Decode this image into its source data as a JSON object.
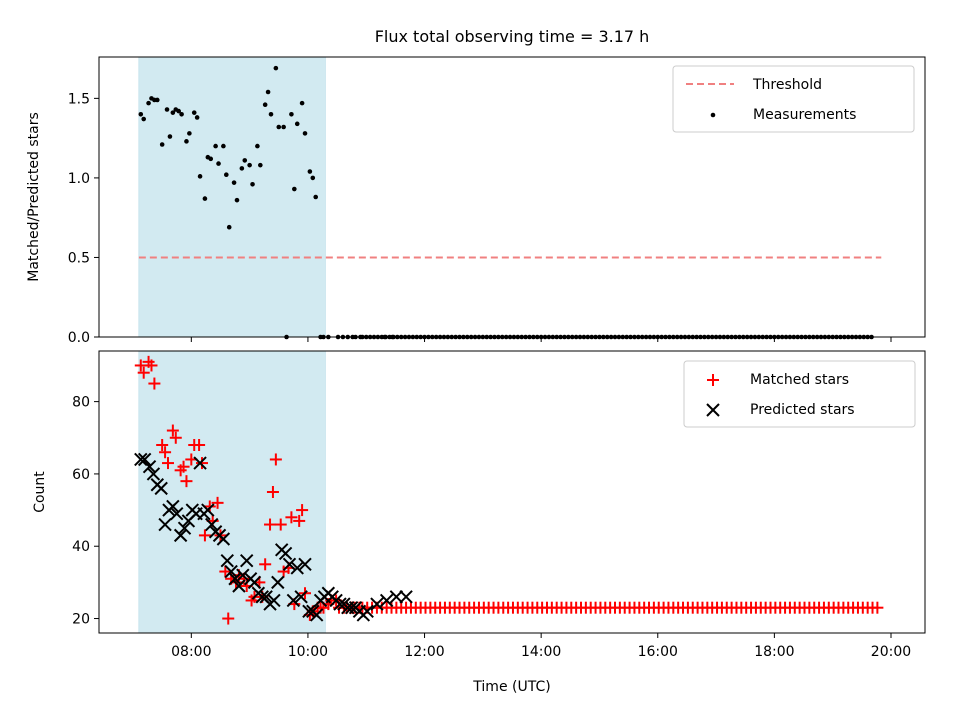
{
  "chart_data": [
    {
      "type": "scatter",
      "title": "Flux total observing time = 3.17 h",
      "ylabel": "Matched/Predicted stars",
      "xlim": [
        "06:25",
        "20:35"
      ],
      "ylim": [
        0,
        1.76
      ],
      "yticks": [
        0.0,
        0.5,
        1.0,
        1.5
      ],
      "ytick_labels": [
        "0.0",
        "0.5",
        "1.0",
        "1.5"
      ],
      "shaded_span": [
        "07:06",
        "10:18"
      ],
      "shaded_color": "#add8e6",
      "threshold": {
        "name": "Threshold",
        "value": 0.5,
        "from": "07:06",
        "to": "19:50",
        "color": "#f08080",
        "style": "dashed"
      },
      "series": [
        {
          "name": "Measurements",
          "color": "#000000",
          "x": [
            "07:08",
            "07:11",
            "07:16",
            "07:19",
            "07:22",
            "07:25",
            "07:30",
            "07:35",
            "07:38",
            "07:41",
            "07:44",
            "07:47",
            "07:50",
            "07:55",
            "07:58",
            "08:03",
            "08:06",
            "08:09",
            "08:14",
            "08:17",
            "08:20",
            "08:25",
            "08:28",
            "08:33",
            "08:36",
            "08:39",
            "08:44",
            "08:47",
            "08:52",
            "08:55",
            "09:00",
            "09:03",
            "09:08",
            "09:11",
            "09:16",
            "09:19",
            "09:22",
            "09:27",
            "09:30",
            "09:35",
            "09:38",
            "09:43",
            "09:46",
            "09:49",
            "09:54",
            "09:57",
            "10:02",
            "10:05",
            "10:08",
            "10:13",
            "10:16",
            "10:21",
            "10:31",
            "10:36",
            "10:41",
            "10:46",
            "10:49",
            "10:54",
            "11:19",
            "11:27"
          ],
          "y": [
            1.4,
            1.37,
            1.47,
            1.5,
            1.49,
            1.49,
            1.21,
            1.43,
            1.26,
            1.41,
            1.43,
            1.42,
            1.4,
            1.23,
            1.28,
            1.41,
            1.38,
            1.01,
            0.87,
            1.13,
            1.12,
            1.2,
            1.09,
            1.2,
            1.02,
            0.69,
            0.97,
            0.86,
            1.06,
            1.11,
            1.08,
            0.96,
            1.2,
            1.08,
            1.46,
            1.54,
            1.4,
            1.69,
            1.32,
            1.32,
            0.0,
            1.4,
            0.93,
            1.34,
            1.47,
            1.28,
            1.04,
            1.0,
            0.88,
            0.0,
            0.0,
            0.0,
            0.0,
            0.0,
            0.0,
            0.0,
            0.0,
            0.0,
            0.0,
            0.0
          ],
          "zero_run": {
            "from": "10:56",
            "to": "19:42",
            "step_minutes": 4,
            "y": 0.0
          }
        }
      ],
      "legend": {
        "placement": "top-right",
        "entries": [
          "Threshold",
          "Measurements"
        ]
      }
    },
    {
      "type": "scatter",
      "xlabel": "Time (UTC)",
      "ylabel": "Count",
      "xlim": [
        "06:25",
        "20:35"
      ],
      "xticks": [
        "08:00",
        "10:00",
        "12:00",
        "14:00",
        "16:00",
        "18:00",
        "20:00"
      ],
      "ylim": [
        16,
        94
      ],
      "yticks": [
        20,
        40,
        60,
        80
      ],
      "ytick_labels": [
        "20",
        "40",
        "60",
        "80"
      ],
      "shaded_span": [
        "07:06",
        "10:18"
      ],
      "shaded_color": "#add8e6",
      "series": [
        {
          "name": "Matched stars",
          "marker": "plus",
          "color": "#ff0000",
          "x": [
            "07:08",
            "07:11",
            "07:16",
            "07:19",
            "07:22",
            "07:30",
            "07:33",
            "07:36",
            "07:41",
            "07:44",
            "07:49",
            "07:52",
            "07:55",
            "08:00",
            "08:03",
            "08:08",
            "08:11",
            "08:14",
            "08:19",
            "08:22",
            "08:27",
            "08:30",
            "08:35",
            "08:38",
            "08:41",
            "08:46",
            "08:49",
            "08:54",
            "08:57",
            "09:02",
            "09:05",
            "09:10",
            "09:13",
            "09:16",
            "09:21",
            "09:24",
            "09:27",
            "09:32",
            "09:35",
            "09:40",
            "09:43",
            "09:46",
            "09:51",
            "09:54",
            "09:57",
            "10:02",
            "10:05",
            "10:10",
            "10:13",
            "10:16",
            "10:21",
            "10:24",
            "10:29",
            "10:32",
            "10:37",
            "10:40",
            "10:45",
            "10:48",
            "10:53",
            "10:56",
            "11:01",
            "11:06",
            "11:11",
            "11:16",
            "11:21",
            "11:26",
            "11:31"
          ],
          "y": [
            90,
            88,
            91,
            90,
            85,
            68,
            66,
            63,
            72,
            70,
            61,
            62,
            58,
            64,
            68,
            68,
            63,
            43,
            51,
            47,
            52,
            43,
            33,
            20,
            31,
            30,
            32,
            31,
            29,
            25,
            26,
            30,
            26,
            35,
            46,
            55,
            64,
            46,
            33,
            34,
            48,
            24,
            47,
            50,
            27,
            21,
            22,
            23,
            23,
            23,
            24,
            25,
            25,
            23,
            23,
            23,
            23,
            23,
            23,
            23,
            23,
            23,
            23,
            23,
            23,
            23,
            23
          ],
          "plus_run": {
            "from": "11:36",
            "to": "19:46",
            "step_minutes": 5,
            "y": 23
          }
        },
        {
          "name": "Predicted stars",
          "marker": "x",
          "color": "#000000",
          "x": [
            "07:08",
            "07:12",
            "07:17",
            "07:21",
            "07:25",
            "07:29",
            "07:33",
            "07:37",
            "07:41",
            "07:45",
            "07:49",
            "07:53",
            "07:57",
            "08:01",
            "08:05",
            "08:09",
            "08:13",
            "08:17",
            "08:21",
            "08:25",
            "08:29",
            "08:33",
            "08:37",
            "08:41",
            "08:45",
            "08:49",
            "08:53",
            "08:57",
            "09:01",
            "09:05",
            "09:09",
            "09:13",
            "09:17",
            "09:21",
            "09:25",
            "09:29",
            "09:33",
            "09:37",
            "09:41",
            "09:45",
            "09:49",
            "09:53",
            "09:57",
            "10:01",
            "10:05",
            "10:09",
            "10:13",
            "10:17",
            "10:21",
            "10:25",
            "10:29",
            "10:33",
            "10:37",
            "10:41",
            "10:45",
            "10:49",
            "10:53",
            "10:57",
            "11:01",
            "11:11",
            "11:21",
            "11:31",
            "11:41"
          ],
          "y": [
            64,
            64,
            62,
            60,
            57,
            56,
            46,
            50,
            51,
            49,
            43,
            45,
            47,
            50,
            49,
            63,
            49,
            50,
            46,
            44,
            43,
            42,
            36,
            33,
            31,
            29,
            32,
            36,
            31,
            30,
            27,
            26,
            26,
            24,
            25,
            30,
            39,
            38,
            35,
            25,
            34,
            26,
            35,
            22,
            22,
            21,
            25,
            26,
            27,
            26,
            25,
            24,
            24,
            23,
            23,
            23,
            22,
            21,
            22,
            24,
            25,
            26,
            26
          ]
        }
      ],
      "legend": {
        "placement": "top-right",
        "entries": [
          "Matched stars",
          "Predicted stars"
        ]
      }
    }
  ]
}
